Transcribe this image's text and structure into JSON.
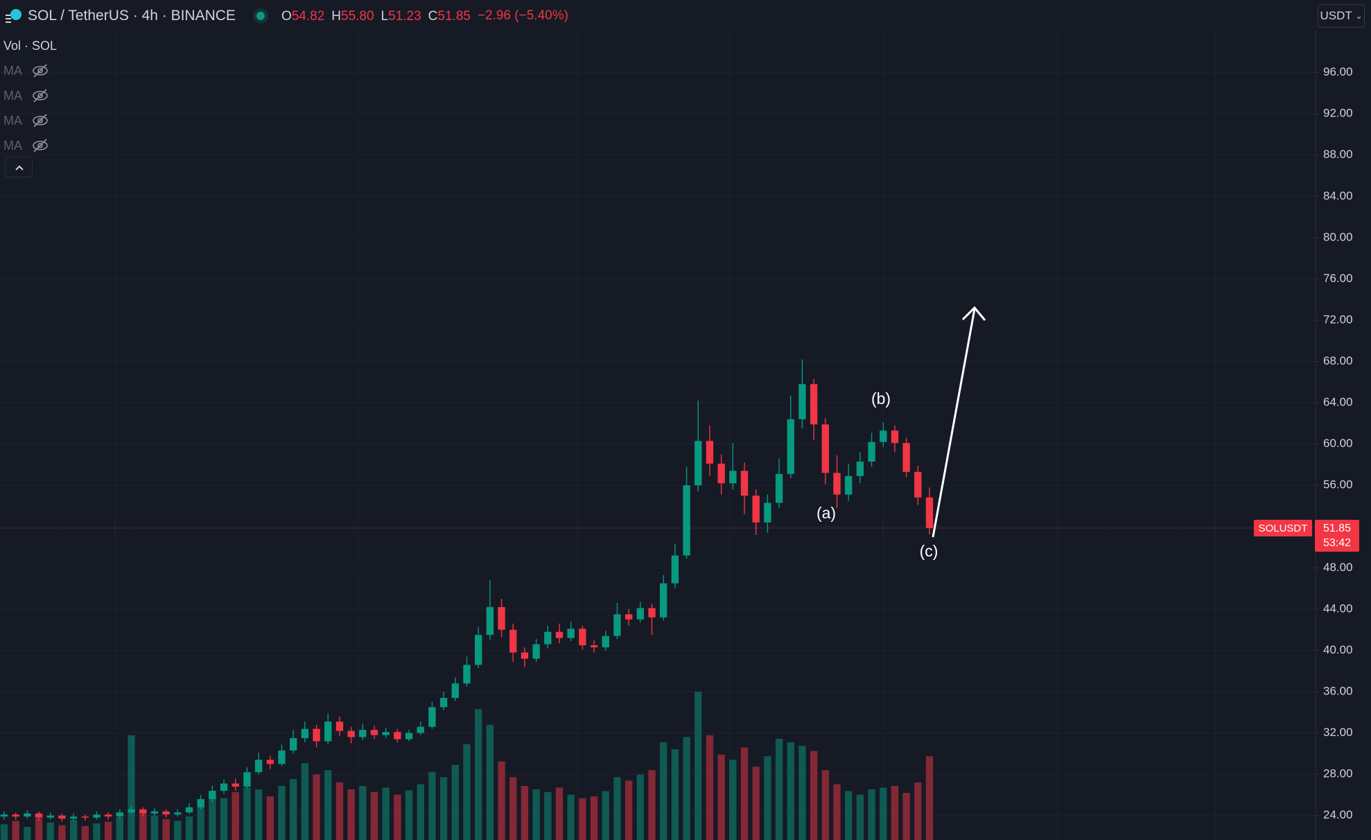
{
  "header": {
    "symbol": "SOL / TetherUS · 4h · BINANCE",
    "ohlc": [
      {
        "label": "O",
        "value": "54.82"
      },
      {
        "label": "H",
        "value": "55.80"
      },
      {
        "label": "L",
        "value": "51.23"
      },
      {
        "label": "C",
        "value": "51.85"
      }
    ],
    "change": "−2.96 (−5.40%)",
    "currency": "USDT"
  },
  "legend": {
    "volume": "Vol · SOL",
    "indicators": [
      "MA",
      "MA",
      "MA",
      "MA"
    ]
  },
  "chart_data": {
    "type": "candlestick",
    "open": [
      23.9,
      24.1,
      23.9,
      24.2,
      23.8,
      24.0,
      23.7,
      23.9,
      23.8,
      24.1,
      23.9,
      24.3,
      24.6,
      24.2,
      24.4,
      24.1,
      24.3,
      24.8,
      25.6,
      26.4,
      27.1,
      26.8,
      28.2,
      29.4,
      29.0,
      30.3,
      31.5,
      32.4,
      31.2,
      33.1,
      32.2,
      31.6,
      32.3,
      31.8,
      32.1,
      31.4,
      32.0,
      32.6,
      34.5,
      35.4,
      36.8,
      38.6,
      41.5,
      44.2,
      42.0,
      39.8,
      39.2,
      40.6,
      41.8,
      41.2,
      42.1,
      40.5,
      40.3,
      41.4,
      43.5,
      43.0,
      44.1,
      43.2,
      46.5,
      49.2,
      56.0,
      60.3,
      58.1,
      56.2,
      57.4,
      55.0,
      52.4,
      54.3,
      57.1,
      62.4,
      65.8,
      61.9,
      57.2,
      55.1,
      56.9,
      58.3,
      60.2,
      61.3,
      60.1,
      57.3,
      54.82
    ],
    "high": [
      24.4,
      24.3,
      24.5,
      24.4,
      24.3,
      24.2,
      24.2,
      24.1,
      24.4,
      24.3,
      24.6,
      25.0,
      24.8,
      24.7,
      24.6,
      24.6,
      25.2,
      26.0,
      26.9,
      27.5,
      27.6,
      28.7,
      30.1,
      29.8,
      30.9,
      32.3,
      33.1,
      32.8,
      33.9,
      33.6,
      32.6,
      32.9,
      32.7,
      32.5,
      32.4,
      32.3,
      33.1,
      35.0,
      36.0,
      37.4,
      39.4,
      42.3,
      46.8,
      45.0,
      42.6,
      40.3,
      41.1,
      42.4,
      42.6,
      42.8,
      42.4,
      41.0,
      41.9,
      44.6,
      44.0,
      44.7,
      44.5,
      47.3,
      50.3,
      57.8,
      64.2,
      61.8,
      59.0,
      60.1,
      58.2,
      55.6,
      55.1,
      58.6,
      64.7,
      68.2,
      66.3,
      62.5,
      58.9,
      58.1,
      59.2,
      61.1,
      62.1,
      61.8,
      60.6,
      57.9,
      55.8
    ],
    "low": [
      23.6,
      23.6,
      23.7,
      23.5,
      23.6,
      23.4,
      23.5,
      23.5,
      23.6,
      23.6,
      23.7,
      24.1,
      23.9,
      24.0,
      23.8,
      23.9,
      24.1,
      24.6,
      25.3,
      26.1,
      26.4,
      26.6,
      28.0,
      28.5,
      28.8,
      30.0,
      31.1,
      30.6,
      30.9,
      31.7,
      31.0,
      31.3,
      31.4,
      31.5,
      31.1,
      31.2,
      31.8,
      32.4,
      34.2,
      35.1,
      36.5,
      38.3,
      41.0,
      41.3,
      38.9,
      38.4,
      38.9,
      40.2,
      40.7,
      40.9,
      40.1,
      39.8,
      40.0,
      41.1,
      42.4,
      42.7,
      41.5,
      42.9,
      46.0,
      48.9,
      55.4,
      56.9,
      55.1,
      55.6,
      53.2,
      51.2,
      51.4,
      53.8,
      56.7,
      61.5,
      60.4,
      56.1,
      53.8,
      54.5,
      56.2,
      57.8,
      59.7,
      59.2,
      56.8,
      54.1,
      51.23
    ],
    "close": [
      24.1,
      23.9,
      24.2,
      23.8,
      24.0,
      23.7,
      23.9,
      23.8,
      24.1,
      23.9,
      24.3,
      24.6,
      24.2,
      24.4,
      24.1,
      24.3,
      24.8,
      25.6,
      26.4,
      27.1,
      26.8,
      28.2,
      29.4,
      29.0,
      30.3,
      31.5,
      32.4,
      31.2,
      33.1,
      32.2,
      31.6,
      32.3,
      31.8,
      32.1,
      31.4,
      32.0,
      32.6,
      34.5,
      35.4,
      36.8,
      38.6,
      41.5,
      44.2,
      42.0,
      39.8,
      39.2,
      40.6,
      41.8,
      41.2,
      42.1,
      40.5,
      40.3,
      41.4,
      43.5,
      43.0,
      44.1,
      43.2,
      46.5,
      49.2,
      56.0,
      60.3,
      58.1,
      56.2,
      57.4,
      55.0,
      52.4,
      54.3,
      57.1,
      62.4,
      65.8,
      61.9,
      57.2,
      55.1,
      56.9,
      58.3,
      60.2,
      61.3,
      60.1,
      57.3,
      54.82,
      51.85
    ],
    "volume": [
      18,
      22,
      15,
      25,
      20,
      17,
      23,
      16,
      19,
      21,
      26,
      120,
      30,
      28,
      24,
      22,
      27,
      45,
      52,
      48,
      55,
      60,
      58,
      50,
      62,
      70,
      88,
      75,
      80,
      66,
      58,
      62,
      55,
      60,
      52,
      57,
      64,
      78,
      72,
      86,
      110,
      150,
      132,
      90,
      72,
      62,
      58,
      55,
      60,
      52,
      48,
      50,
      56,
      72,
      68,
      75,
      80,
      112,
      104,
      118,
      170,
      120,
      98,
      92,
      106,
      84,
      96,
      116,
      112,
      108,
      102,
      80,
      64,
      56,
      52,
      58,
      60,
      62,
      54,
      66,
      96
    ],
    "up_color": "#089981",
    "down_color": "#f23645",
    "ylim": [
      21.63,
      100.07
    ],
    "yticks": [
      {
        "value": 24,
        "label": "24.00"
      },
      {
        "value": 28,
        "label": "28.00"
      },
      {
        "value": 32,
        "label": "32.00"
      },
      {
        "value": 36,
        "label": "36.00"
      },
      {
        "value": 40,
        "label": "40.00"
      },
      {
        "value": 44,
        "label": "44.00"
      },
      {
        "value": 48,
        "label": "48.00"
      },
      {
        "value": 52,
        "label": "52.00"
      },
      {
        "value": 56,
        "label": "56.00"
      },
      {
        "value": 60,
        "label": "60.00"
      },
      {
        "value": 64,
        "label": "64.00"
      },
      {
        "value": 68,
        "label": "68.00"
      },
      {
        "value": 72,
        "label": "72.00"
      },
      {
        "value": 76,
        "label": "76.00"
      },
      {
        "value": 80,
        "label": "80.00"
      },
      {
        "value": 84,
        "label": "84.00"
      },
      {
        "value": 88,
        "label": "88.00"
      },
      {
        "value": 92,
        "label": "92.00"
      },
      {
        "value": 96,
        "label": "96.00"
      }
    ],
    "grid": true,
    "annotations": [
      "(a)",
      "(b)",
      "(c)"
    ],
    "last_price": {
      "symbol": "SOLUSDT",
      "value": 51.85,
      "countdown": "53:42"
    }
  }
}
